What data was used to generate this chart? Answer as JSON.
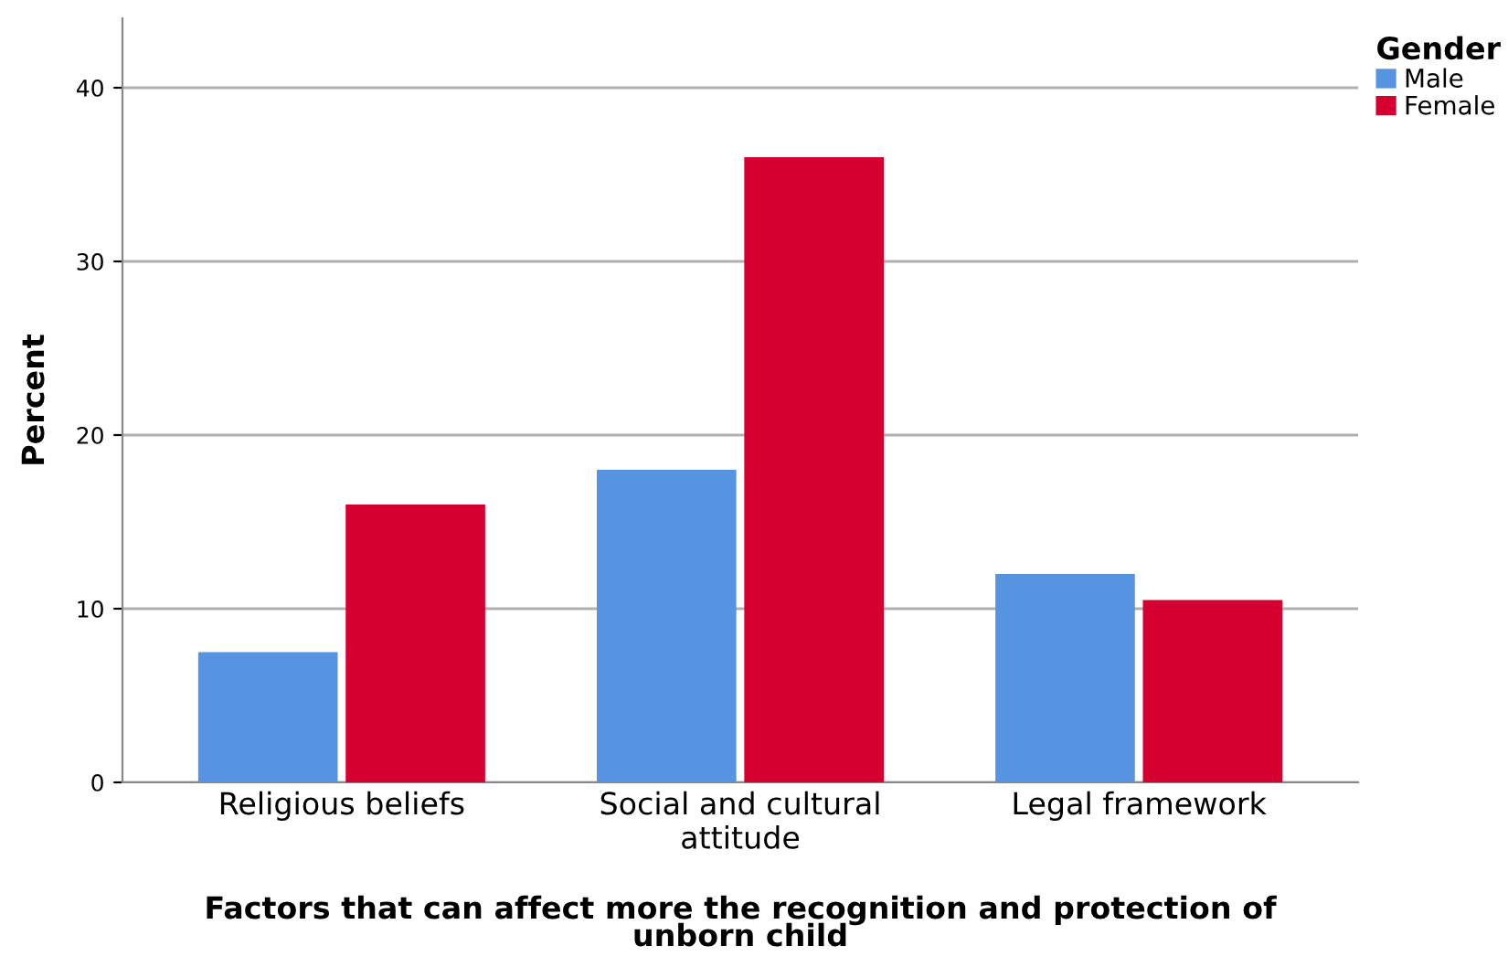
{
  "chart_data": {
    "type": "bar",
    "xlabel": "Factors that can affect more the recognition and protection of\nunborn child",
    "ylabel": "Percent",
    "legend_title": "Gender",
    "categories": [
      "Religious beliefs",
      "Social and cultural\nattitude",
      "Legal framework"
    ],
    "series": [
      {
        "name": "Male",
        "color": "#5693e0",
        "values": [
          7.5,
          18.0,
          12.0
        ]
      },
      {
        "name": "Female",
        "color": "#d5002f",
        "values": [
          16.0,
          36.0,
          10.5
        ]
      }
    ],
    "ylim": [
      0,
      44
    ],
    "yticks": [
      0,
      10,
      20,
      30,
      40
    ],
    "grid": "y",
    "legend": "top right"
  }
}
